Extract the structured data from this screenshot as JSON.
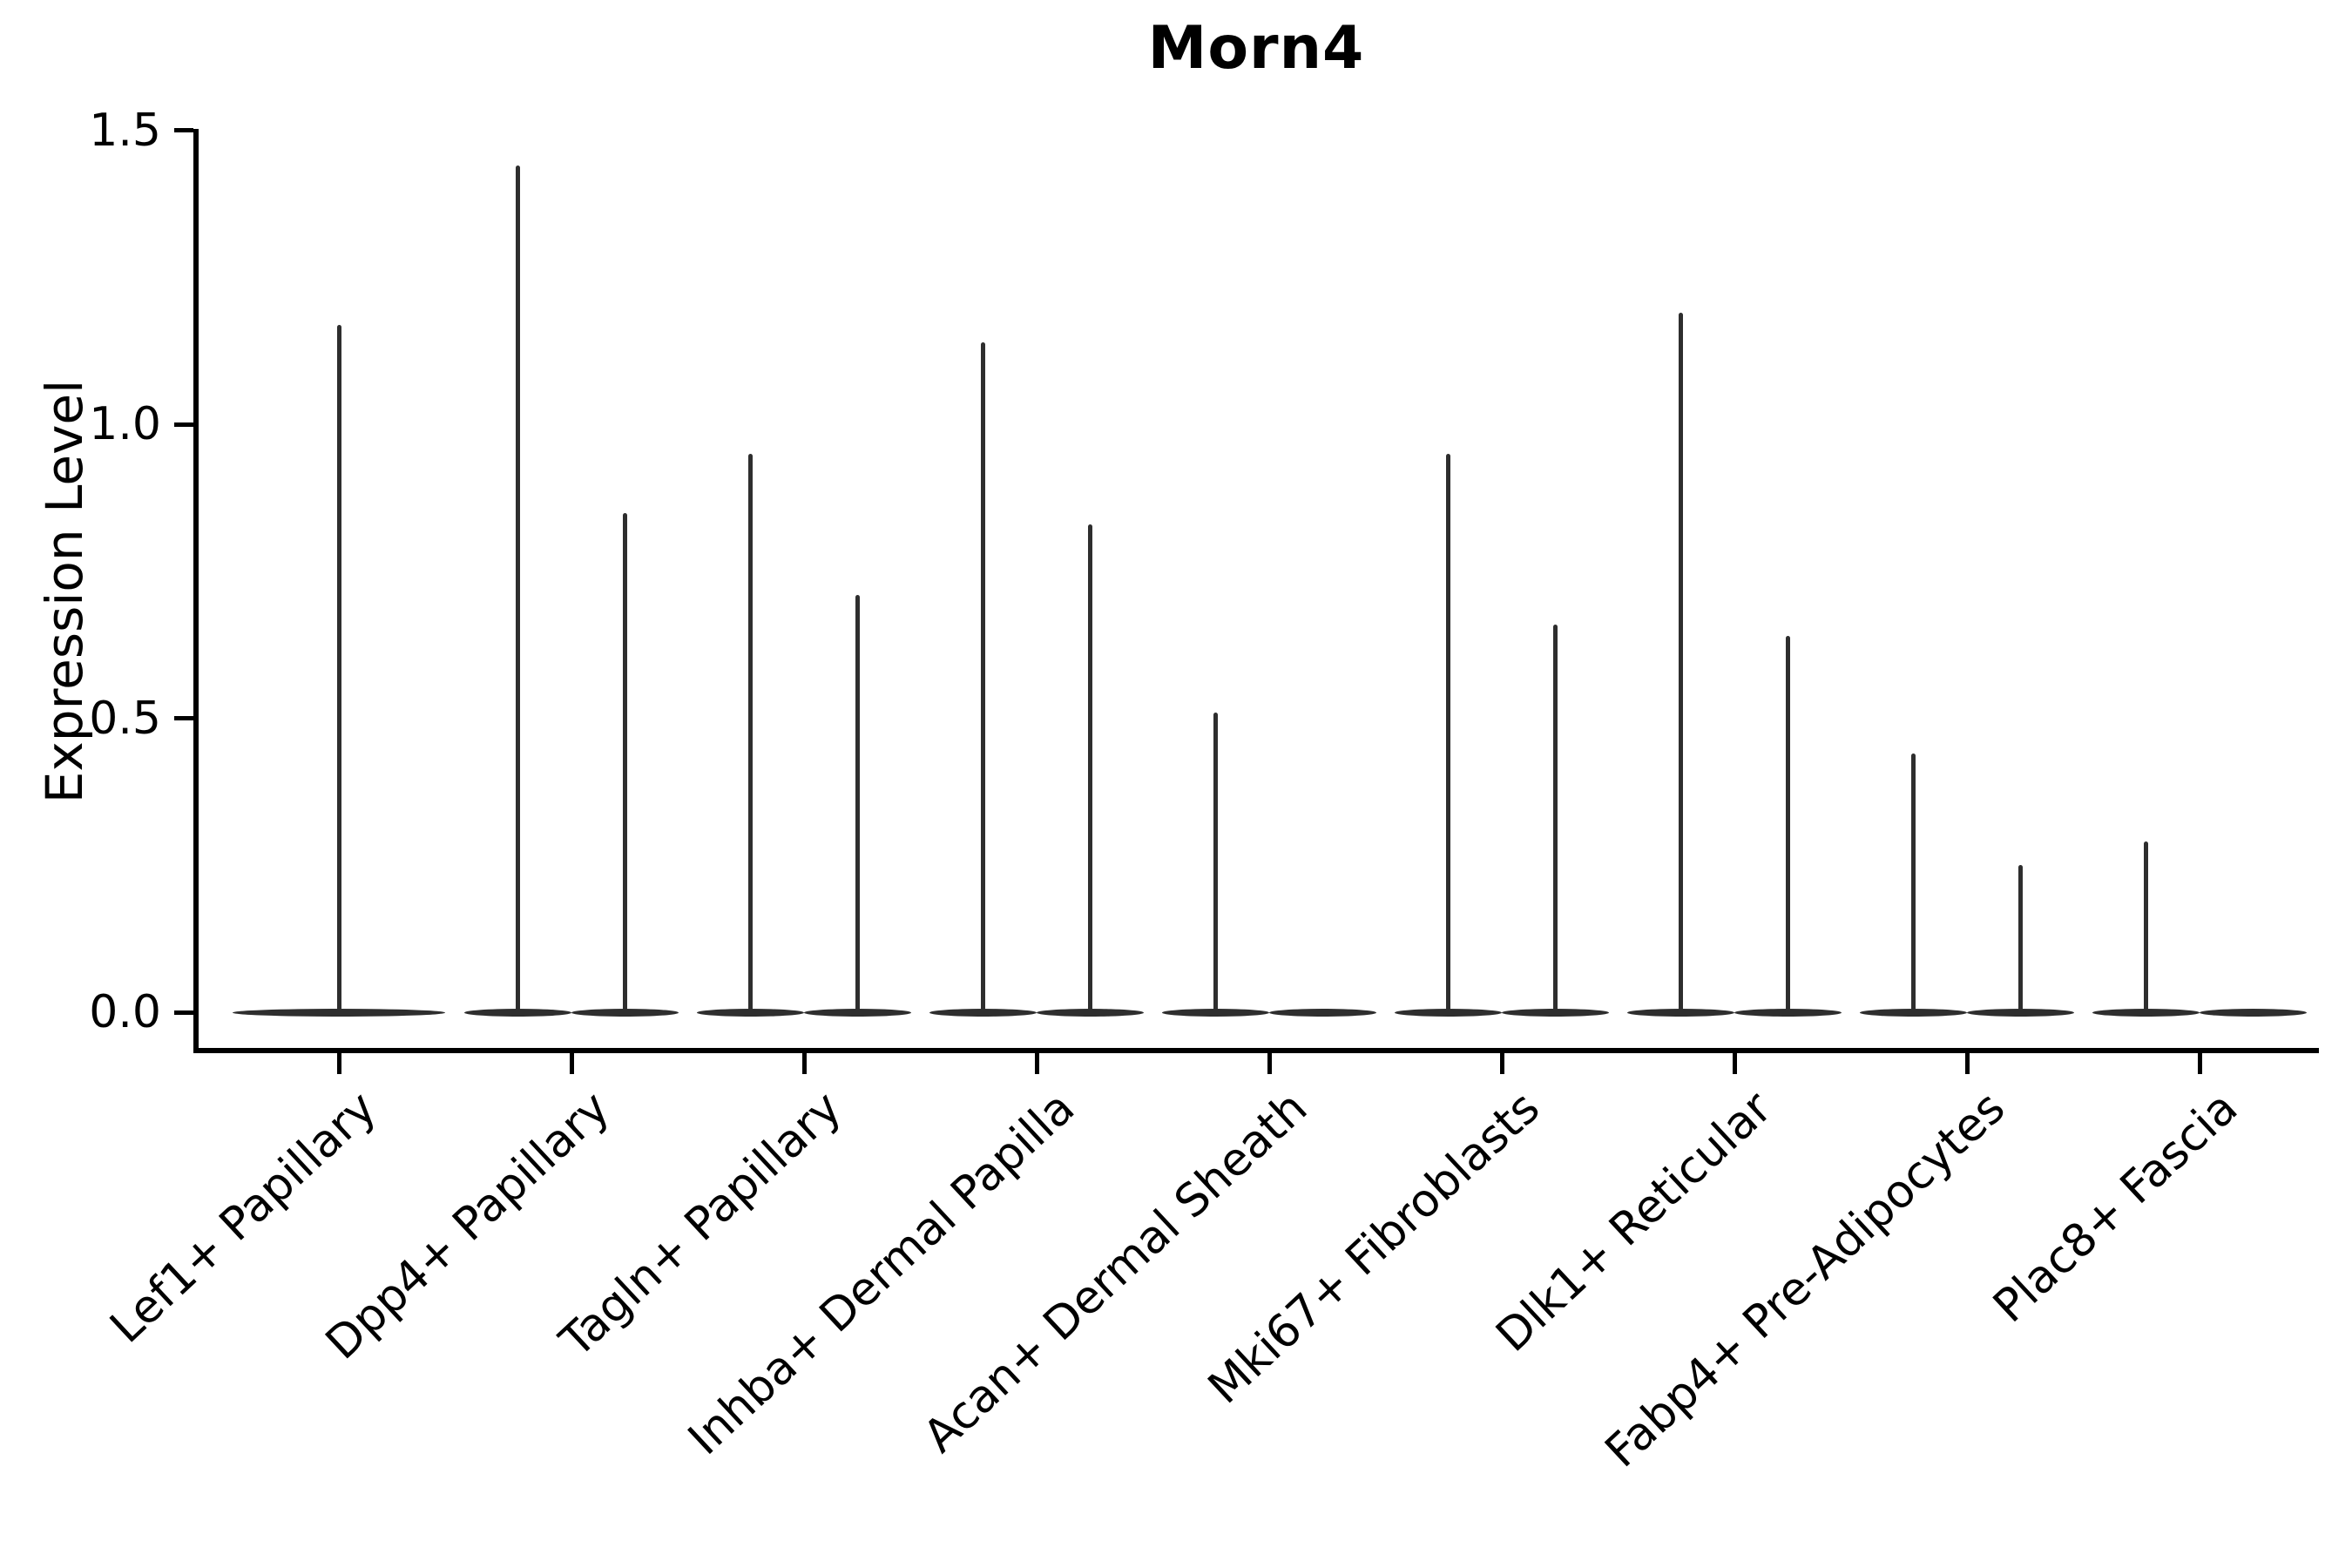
{
  "chart_data": {
    "type": "violin",
    "title": "Morn4",
    "xlabel": "",
    "ylabel": "Expression Level",
    "ytick_labels": [
      "0.0",
      "0.5",
      "1.0",
      "1.5"
    ],
    "ytick_values": [
      0.0,
      0.5,
      1.0,
      1.5
    ],
    "ylim": [
      -0.064,
      1.564
    ],
    "grid": false,
    "legend": null,
    "background": "#ffffff",
    "colors": {
      "violin": "#2e2e2e",
      "axis": "#000000",
      "text": "#000000"
    },
    "categories": [
      {
        "label": "Lef1+ Papillary",
        "base": "single",
        "violins": [
          {
            "pos": 0.0,
            "max": 1.17
          }
        ]
      },
      {
        "label": "Dpp4+ Papillary",
        "base": "split",
        "violins": [
          {
            "pos": -0.23,
            "max": 1.44
          },
          {
            "pos": 0.23,
            "max": 0.85
          }
        ]
      },
      {
        "label": "Tagln+ Papillary",
        "base": "split",
        "violins": [
          {
            "pos": -0.23,
            "max": 0.95
          },
          {
            "pos": 0.23,
            "max": 0.71
          }
        ]
      },
      {
        "label": "Inhba+ Dermal Papilla",
        "base": "split",
        "violins": [
          {
            "pos": -0.23,
            "max": 1.14
          },
          {
            "pos": 0.23,
            "max": 0.83
          }
        ]
      },
      {
        "label": "Acan+ Dermal Sheath",
        "base": "split",
        "violins": [
          {
            "pos": -0.23,
            "max": 0.51
          }
        ]
      },
      {
        "label": "Mki67+ Fibroblasts",
        "base": "split",
        "violins": [
          {
            "pos": -0.23,
            "max": 0.95
          },
          {
            "pos": 0.23,
            "max": 0.66
          }
        ]
      },
      {
        "label": "Dlk1+ Reticular",
        "base": "split",
        "violins": [
          {
            "pos": -0.23,
            "max": 1.19
          },
          {
            "pos": 0.23,
            "max": 0.64
          }
        ]
      },
      {
        "label": "Fabp4+ Pre-Adipocytes",
        "base": "split",
        "violins": [
          {
            "pos": -0.23,
            "max": 0.44
          },
          {
            "pos": 0.23,
            "max": 0.25
          }
        ]
      },
      {
        "label": "Plac8+ Fascia",
        "base": "split",
        "violins": [
          {
            "pos": -0.23,
            "max": 0.29
          }
        ]
      }
    ]
  }
}
